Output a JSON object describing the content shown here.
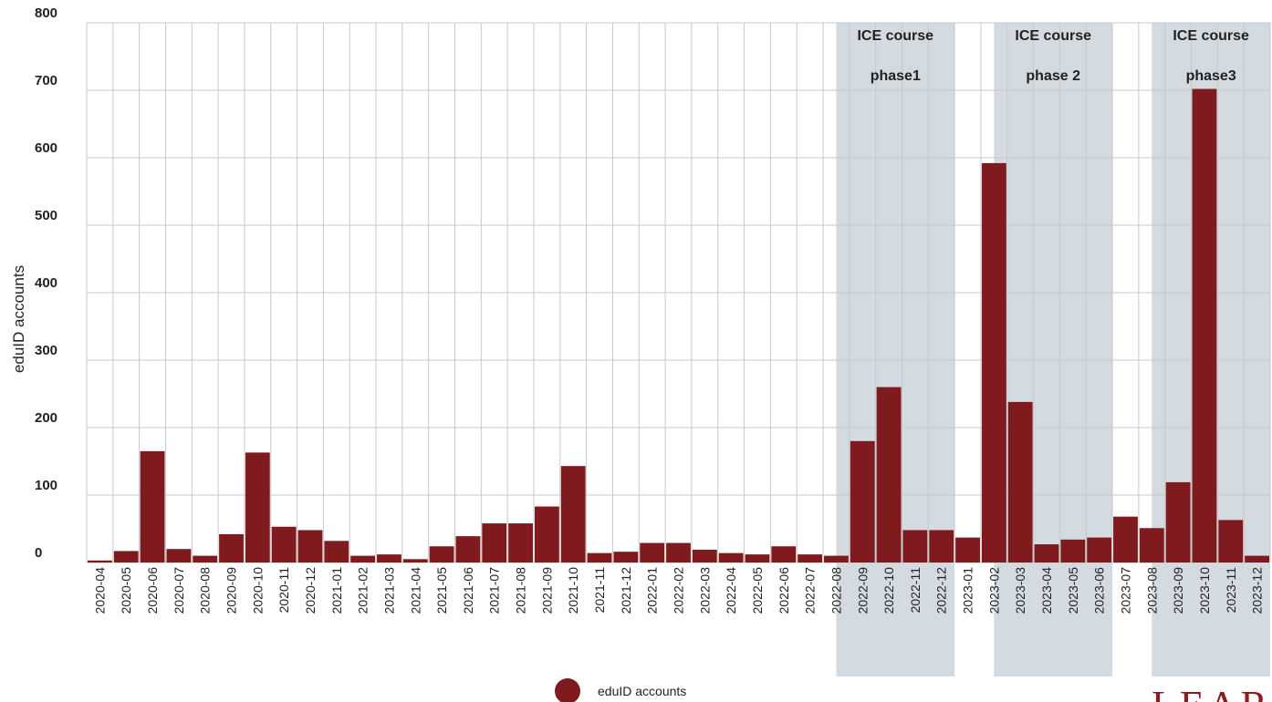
{
  "chart_data": {
    "type": "bar",
    "ylabel": "eduID accounts",
    "ylim": [
      0,
      800
    ],
    "yticks": [
      0,
      100,
      200,
      300,
      400,
      500,
      600,
      700,
      800
    ],
    "grid": true,
    "categories": [
      "2020-04",
      "2020-05",
      "2020-06",
      "2020-07",
      "2020-08",
      "2020-09",
      "2020-10",
      "2020-11",
      "2020-12",
      "2021-01",
      "2021-02",
      "2021-03",
      "2021-04",
      "2021-05",
      "2021-06",
      "2021-07",
      "2021-08",
      "2021-09",
      "2021-10",
      "2021-11",
      "2021-12",
      "2022-01",
      "2022-02",
      "2022-03",
      "2022-04",
      "2022-05",
      "2022-06",
      "2022-07",
      "2022-08",
      "2022-09",
      "2022-10",
      "2022-11",
      "2022-12",
      "2023-01",
      "2023-02",
      "2023-03",
      "2023-04",
      "2023-05",
      "2023-06",
      "2023-07",
      "2023-08",
      "2023-09",
      "2023-10",
      "2023-11",
      "2023-12"
    ],
    "series": [
      {
        "name": "eduID accounts",
        "color": "#7f1a1f",
        "values": [
          3,
          17,
          165,
          20,
          10,
          42,
          163,
          53,
          48,
          32,
          10,
          12,
          5,
          24,
          39,
          58,
          58,
          83,
          143,
          14,
          16,
          29,
          29,
          19,
          14,
          12,
          24,
          12,
          10,
          180,
          260,
          48,
          48,
          37,
          592,
          238,
          27,
          34,
          37,
          68,
          51,
          119,
          702,
          63,
          10
        ]
      }
    ],
    "shaded_regions": [
      {
        "label_line1": "ICE course",
        "label_line2": "phase1",
        "from": "2022-08",
        "to": "2022-12"
      },
      {
        "label_line1": "ICE course",
        "label_line2": "phase 2",
        "from": "2023-02",
        "to": "2023-06"
      },
      {
        "label_line1": "ICE course",
        "label_line2": "phase3",
        "from": "2023-08",
        "to": "2023-12"
      }
    ],
    "shade_color": "#d3dbe1",
    "legend": {
      "label": "eduID accounts",
      "position": "bottom-center"
    },
    "brand_fragment": "LEAR"
  }
}
